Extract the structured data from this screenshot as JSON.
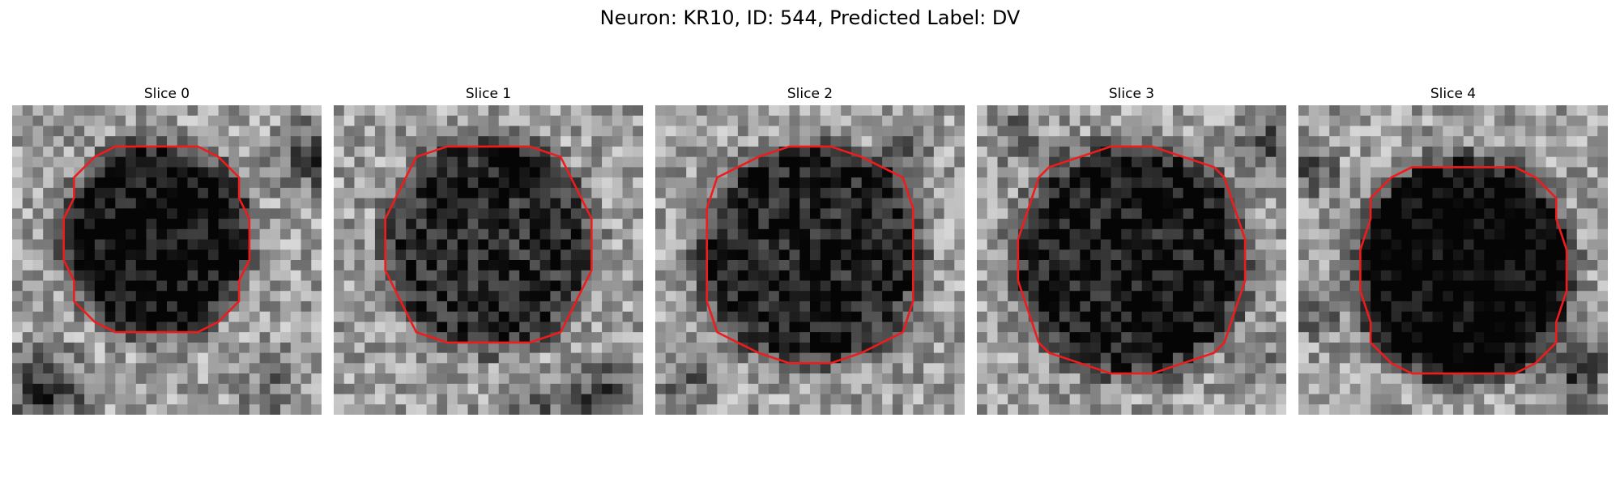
{
  "figure": {
    "title": "Neuron: KR10, ID: 544, Predicted Label: DV"
  },
  "panels": [
    {
      "title": "Slice 0"
    },
    {
      "title": "Slice 1"
    },
    {
      "title": "Slice 2"
    },
    {
      "title": "Slice 3"
    },
    {
      "title": "Slice 4"
    }
  ],
  "colors": {
    "contour": "#ee1c1c",
    "background": "#ffffff"
  }
}
